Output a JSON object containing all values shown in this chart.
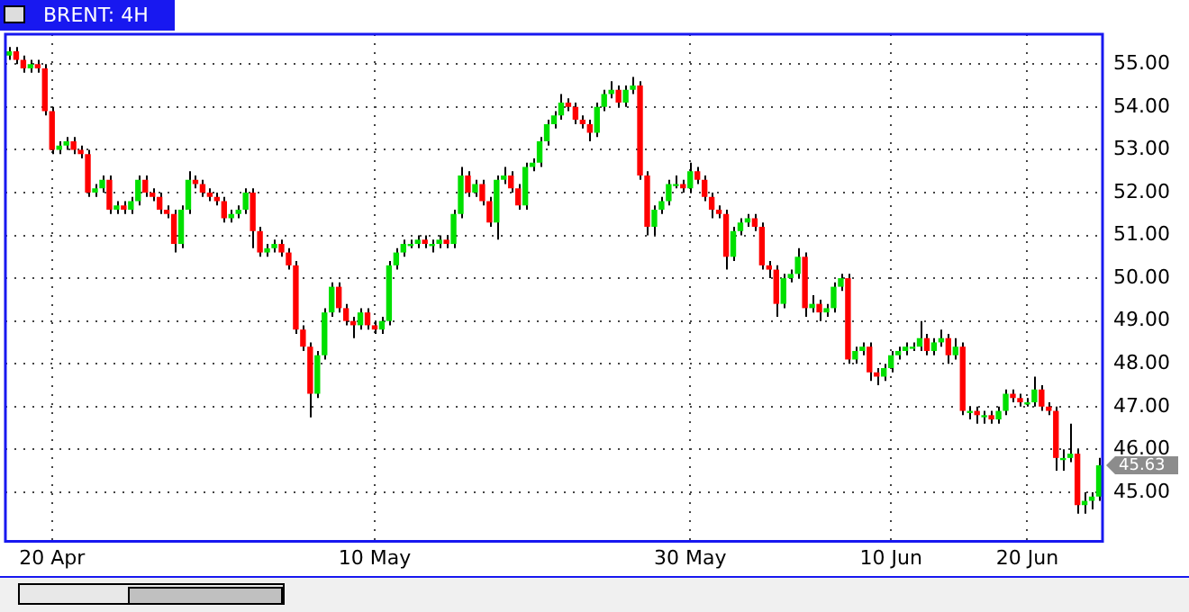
{
  "chart_data": {
    "type": "candlestick",
    "title": "BRENT: 4H",
    "categories": [
      null,
      null,
      null,
      null,
      null,
      null,
      "20 Apr",
      null,
      null,
      null,
      null,
      null,
      null,
      null,
      null,
      null,
      null,
      null,
      null,
      null,
      null,
      null,
      null,
      null,
      null,
      null,
      null,
      null,
      null,
      null,
      null,
      null,
      null,
      null,
      null,
      null,
      null,
      null,
      null,
      null,
      null,
      null,
      null,
      null,
      null,
      null,
      null,
      null,
      null,
      null,
      null,
      "10 May",
      null,
      null,
      null,
      null,
      null,
      null,
      null,
      null,
      null,
      null,
      null,
      null,
      null,
      null,
      null,
      null,
      null,
      null,
      null,
      null,
      null,
      null,
      null,
      null,
      null,
      null,
      null,
      null,
      null,
      null,
      null,
      null,
      null,
      null,
      null,
      null,
      null,
      null,
      null,
      null,
      null,
      null,
      null,
      "30 May",
      null,
      null,
      null,
      null,
      null,
      null,
      null,
      null,
      null,
      null,
      null,
      null,
      null,
      null,
      null,
      null,
      null,
      null,
      null,
      null,
      null,
      null,
      null,
      null,
      null,
      null,
      null,
      "10 Jun",
      null,
      null,
      null,
      null,
      null,
      null,
      null,
      null,
      null,
      null,
      null,
      null,
      null,
      null,
      null,
      null,
      null,
      null,
      "20 Jun",
      null,
      null,
      null,
      null,
      null,
      null,
      null,
      null,
      null,
      null
    ],
    "ohlc": [
      [
        55.2,
        55.4,
        55.1,
        55.3
      ],
      [
        55.3,
        55.4,
        55.0,
        55.1
      ],
      [
        55.1,
        55.2,
        54.8,
        54.9
      ],
      [
        54.9,
        55.1,
        54.8,
        55.0
      ],
      [
        55.0,
        55.1,
        54.8,
        54.9
      ],
      [
        54.9,
        55.0,
        53.8,
        53.9
      ],
      [
        53.9,
        54.0,
        52.9,
        53.0
      ],
      [
        53.0,
        53.2,
        52.9,
        53.1
      ],
      [
        53.1,
        53.3,
        53.0,
        53.2
      ],
      [
        53.2,
        53.3,
        52.9,
        53.0
      ],
      [
        53.0,
        53.1,
        52.8,
        52.9
      ],
      [
        52.9,
        53.0,
        51.9,
        52.0
      ],
      [
        52.0,
        52.2,
        51.9,
        52.1
      ],
      [
        52.1,
        52.4,
        52.0,
        52.3
      ],
      [
        52.3,
        52.4,
        51.5,
        51.6
      ],
      [
        51.6,
        51.8,
        51.5,
        51.7
      ],
      [
        51.7,
        51.8,
        51.5,
        51.6
      ],
      [
        51.6,
        51.9,
        51.5,
        51.8
      ],
      [
        51.8,
        52.4,
        51.7,
        52.3
      ],
      [
        52.3,
        52.4,
        51.9,
        52.0
      ],
      [
        52.0,
        52.1,
        51.8,
        51.9
      ],
      [
        51.9,
        52.0,
        51.5,
        51.6
      ],
      [
        51.6,
        51.7,
        51.4,
        51.5
      ],
      [
        51.5,
        51.6,
        50.6,
        50.8
      ],
      [
        50.8,
        51.7,
        50.7,
        51.6
      ],
      [
        51.6,
        52.5,
        51.5,
        52.3
      ],
      [
        52.3,
        52.4,
        52.1,
        52.2
      ],
      [
        52.2,
        52.3,
        51.9,
        52.0
      ],
      [
        52.0,
        52.1,
        51.8,
        51.9
      ],
      [
        51.9,
        52.0,
        51.7,
        51.8
      ],
      [
        51.8,
        51.9,
        51.3,
        51.4
      ],
      [
        51.4,
        51.6,
        51.3,
        51.5
      ],
      [
        51.5,
        51.7,
        51.4,
        51.6
      ],
      [
        51.6,
        52.1,
        51.5,
        52.0
      ],
      [
        52.0,
        52.1,
        50.7,
        51.1
      ],
      [
        51.1,
        51.2,
        50.5,
        50.6
      ],
      [
        50.6,
        50.8,
        50.5,
        50.7
      ],
      [
        50.7,
        50.9,
        50.6,
        50.8
      ],
      [
        50.8,
        50.9,
        50.5,
        50.6
      ],
      [
        50.6,
        50.7,
        50.2,
        50.3
      ],
      [
        50.3,
        50.4,
        48.7,
        48.8
      ],
      [
        48.8,
        48.9,
        48.3,
        48.4
      ],
      [
        48.4,
        48.5,
        46.75,
        47.3
      ],
      [
        47.3,
        48.3,
        47.2,
        48.2
      ],
      [
        48.2,
        49.3,
        48.1,
        49.2
      ],
      [
        49.2,
        49.9,
        49.1,
        49.8
      ],
      [
        49.8,
        49.9,
        49.2,
        49.3
      ],
      [
        49.3,
        49.4,
        48.9,
        49.0
      ],
      [
        49.0,
        49.1,
        48.6,
        48.9
      ],
      [
        48.9,
        49.3,
        48.8,
        49.2
      ],
      [
        49.2,
        49.3,
        48.8,
        48.9
      ],
      [
        48.9,
        49.0,
        48.7,
        48.8
      ],
      [
        48.8,
        49.1,
        48.7,
        49.0
      ],
      [
        49.0,
        50.4,
        48.9,
        50.3
      ],
      [
        50.3,
        50.7,
        50.2,
        50.6
      ],
      [
        50.6,
        50.9,
        50.5,
        50.8
      ],
      [
        50.75,
        50.9,
        50.7,
        50.8
      ],
      [
        50.8,
        51.0,
        50.7,
        50.9
      ],
      [
        50.9,
        51.0,
        50.7,
        50.8
      ],
      [
        50.75,
        50.9,
        50.6,
        50.8
      ],
      [
        50.8,
        51.0,
        50.7,
        50.9
      ],
      [
        50.9,
        51.0,
        50.7,
        50.8
      ],
      [
        50.8,
        51.6,
        50.7,
        51.5
      ],
      [
        51.5,
        52.6,
        51.4,
        52.4
      ],
      [
        52.4,
        52.5,
        51.9,
        52.0
      ],
      [
        52.0,
        52.3,
        51.9,
        52.2
      ],
      [
        52.2,
        52.3,
        51.7,
        51.8
      ],
      [
        51.8,
        51.9,
        51.2,
        51.3
      ],
      [
        51.3,
        52.4,
        50.9,
        52.3
      ],
      [
        52.3,
        52.6,
        52.2,
        52.4
      ],
      [
        52.4,
        52.5,
        52.0,
        52.1
      ],
      [
        52.1,
        52.2,
        51.6,
        51.7
      ],
      [
        51.7,
        52.7,
        51.6,
        52.6
      ],
      [
        52.6,
        52.8,
        52.5,
        52.7
      ],
      [
        52.7,
        53.3,
        52.6,
        53.2
      ],
      [
        53.2,
        53.7,
        53.1,
        53.6
      ],
      [
        53.6,
        53.9,
        53.5,
        53.8
      ],
      [
        53.8,
        54.3,
        53.7,
        54.1
      ],
      [
        54.1,
        54.2,
        53.9,
        54.0
      ],
      [
        54.0,
        54.1,
        53.6,
        53.7
      ],
      [
        53.7,
        53.8,
        53.5,
        53.6
      ],
      [
        53.6,
        53.7,
        53.2,
        53.4
      ],
      [
        53.4,
        54.1,
        53.3,
        54.0
      ],
      [
        54.0,
        54.4,
        53.9,
        54.3
      ],
      [
        54.3,
        54.6,
        54.2,
        54.4
      ],
      [
        54.4,
        54.5,
        54.0,
        54.1
      ],
      [
        54.1,
        54.5,
        54.0,
        54.4
      ],
      [
        54.4,
        54.7,
        54.3,
        54.5
      ],
      [
        54.5,
        54.6,
        52.3,
        52.4
      ],
      [
        52.4,
        52.5,
        51.0,
        51.2
      ],
      [
        51.2,
        51.7,
        51.0,
        51.6
      ],
      [
        51.6,
        51.9,
        51.5,
        51.8
      ],
      [
        51.8,
        52.3,
        51.7,
        52.2
      ],
      [
        52.15,
        52.4,
        52.1,
        52.2
      ],
      [
        52.2,
        52.3,
        52.0,
        52.1
      ],
      [
        52.1,
        52.7,
        52.0,
        52.5
      ],
      [
        52.5,
        52.6,
        52.2,
        52.3
      ],
      [
        52.3,
        52.4,
        51.8,
        51.9
      ],
      [
        51.9,
        52.0,
        51.4,
        51.6
      ],
      [
        51.6,
        51.7,
        51.4,
        51.5
      ],
      [
        51.5,
        51.6,
        50.2,
        50.5
      ],
      [
        50.5,
        51.2,
        50.4,
        51.1
      ],
      [
        51.1,
        51.4,
        51.0,
        51.3
      ],
      [
        51.3,
        51.5,
        51.2,
        51.4
      ],
      [
        51.4,
        51.5,
        51.1,
        51.2
      ],
      [
        51.2,
        51.3,
        50.2,
        50.3
      ],
      [
        50.3,
        50.4,
        50.0,
        50.2
      ],
      [
        50.2,
        50.3,
        49.1,
        49.4
      ],
      [
        49.4,
        50.1,
        49.3,
        50.0
      ],
      [
        50.0,
        50.2,
        49.9,
        50.1
      ],
      [
        50.1,
        50.7,
        50.0,
        50.5
      ],
      [
        50.5,
        50.6,
        49.1,
        49.3
      ],
      [
        49.3,
        49.6,
        49.2,
        49.4
      ],
      [
        49.4,
        49.5,
        49.0,
        49.2
      ],
      [
        49.2,
        49.4,
        49.1,
        49.3
      ],
      [
        49.3,
        49.9,
        49.2,
        49.8
      ],
      [
        49.8,
        50.1,
        49.7,
        50.0
      ],
      [
        50.0,
        50.1,
        48.0,
        48.1
      ],
      [
        48.1,
        48.4,
        48.0,
        48.3
      ],
      [
        48.3,
        48.5,
        48.2,
        48.4
      ],
      [
        48.4,
        48.5,
        47.6,
        47.8
      ],
      [
        47.8,
        47.9,
        47.5,
        47.7
      ],
      [
        47.7,
        48.0,
        47.6,
        47.9
      ],
      [
        47.9,
        48.3,
        47.8,
        48.2
      ],
      [
        48.2,
        48.4,
        48.1,
        48.3
      ],
      [
        48.3,
        48.5,
        48.2,
        48.4
      ],
      [
        48.35,
        48.5,
        48.3,
        48.4
      ],
      [
        48.4,
        49.0,
        48.3,
        48.6
      ],
      [
        48.6,
        48.7,
        48.2,
        48.3
      ],
      [
        48.3,
        48.6,
        48.2,
        48.5
      ],
      [
        48.5,
        48.8,
        48.4,
        48.6
      ],
      [
        48.6,
        48.7,
        48.0,
        48.2
      ],
      [
        48.2,
        48.6,
        48.1,
        48.4
      ],
      [
        48.4,
        48.5,
        46.8,
        46.9
      ],
      [
        46.85,
        47.0,
        46.7,
        46.9
      ],
      [
        46.9,
        47.0,
        46.6,
        46.8
      ],
      [
        46.75,
        46.9,
        46.6,
        46.8
      ],
      [
        46.8,
        46.9,
        46.6,
        46.7
      ],
      [
        46.7,
        47.0,
        46.6,
        46.9
      ],
      [
        46.9,
        47.4,
        46.8,
        47.3
      ],
      [
        47.3,
        47.4,
        47.1,
        47.2
      ],
      [
        47.2,
        47.3,
        47.0,
        47.1
      ],
      [
        47.05,
        47.2,
        47.0,
        47.1
      ],
      [
        47.1,
        47.7,
        47.0,
        47.4
      ],
      [
        47.4,
        47.5,
        46.9,
        47.0
      ],
      [
        47.0,
        47.1,
        46.8,
        46.9
      ],
      [
        46.9,
        47.0,
        45.5,
        45.8
      ],
      [
        45.75,
        46.0,
        45.5,
        45.8
      ],
      [
        45.8,
        46.6,
        45.7,
        45.9
      ],
      [
        45.9,
        46.0,
        44.5,
        44.7
      ],
      [
        44.7,
        45.0,
        44.5,
        44.8
      ],
      [
        44.8,
        45.0,
        44.6,
        44.9
      ],
      [
        44.9,
        45.8,
        44.8,
        45.63
      ]
    ],
    "colors": [
      "#00e000",
      "#ff0000",
      "#ff0000",
      "#00e000",
      "#ff0000",
      "#ff0000",
      "#ff0000",
      "#00e000",
      "#00e000",
      "#ff0000",
      "#ff0000",
      "#ff0000",
      "#00e000",
      "#00e000",
      "#ff0000",
      "#00e000",
      "#ff0000",
      "#00e000",
      "#00e000",
      "#ff0000",
      "#ff0000",
      "#ff0000",
      "#ff0000",
      "#ff0000",
      "#00e000",
      "#00e000",
      "#ff0000",
      "#ff0000",
      "#ff0000",
      "#ff0000",
      "#ff0000",
      "#00e000",
      "#00e000",
      "#00e000",
      "#ff0000",
      "#ff0000",
      "#00e000",
      "#00e000",
      "#ff0000",
      "#ff0000",
      "#ff0000",
      "#ff0000",
      "#ff0000",
      "#00e000",
      "#00e000",
      "#00e000",
      "#ff0000",
      "#ff0000",
      "#ff0000",
      "#00e000",
      "#ff0000",
      "#ff0000",
      "#00e000",
      "#00e000",
      "#00e000",
      "#00e000",
      "#00e000",
      "#00e000",
      "#ff0000",
      "#00e000",
      "#00e000",
      "#ff0000",
      "#00e000",
      "#00e000",
      "#ff0000",
      "#00e000",
      "#ff0000",
      "#ff0000",
      "#00e000",
      "#00e000",
      "#ff0000",
      "#ff0000",
      "#00e000",
      "#00e000",
      "#00e000",
      "#00e000",
      "#00e000",
      "#00e000",
      "#ff0000",
      "#ff0000",
      "#ff0000",
      "#ff0000",
      "#00e000",
      "#00e000",
      "#00e000",
      "#ff0000",
      "#00e000",
      "#00e000",
      "#ff0000",
      "#ff0000",
      "#00e000",
      "#00e000",
      "#00e000",
      "#00e000",
      "#ff0000",
      "#00e000",
      "#ff0000",
      "#ff0000",
      "#ff0000",
      "#ff0000",
      "#ff0000",
      "#00e000",
      "#00e000",
      "#00e000",
      "#ff0000",
      "#ff0000",
      "#ff0000",
      "#ff0000",
      "#00e000",
      "#00e000",
      "#00e000",
      "#ff0000",
      "#00e000",
      "#ff0000",
      "#00e000",
      "#00e000",
      "#00e000",
      "#ff0000",
      "#00e000",
      "#00e000",
      "#ff0000",
      "#ff0000",
      "#00e000",
      "#00e000",
      "#00e000",
      "#00e000",
      "#00e000",
      "#00e000",
      "#ff0000",
      "#00e000",
      "#00e000",
      "#ff0000",
      "#00e000",
      "#ff0000",
      "#00e000",
      "#ff0000",
      "#00e000",
      "#ff0000",
      "#00e000",
      "#00e000",
      "#ff0000",
      "#ff0000",
      "#00e000",
      "#00e000",
      "#ff0000",
      "#ff0000",
      "#ff0000",
      "#00e000",
      "#00e000",
      "#ff0000",
      "#00e000",
      "#00e000",
      "#00e000"
    ],
    "ylim": [
      43.85,
      55.7
    ],
    "yticks": [
      {
        "value": 45,
        "label": "45.00"
      },
      {
        "value": 46,
        "label": "46.00"
      },
      {
        "value": 47,
        "label": "47.00"
      },
      {
        "value": 48,
        "label": "48.00"
      },
      {
        "value": 49,
        "label": "49.00"
      },
      {
        "value": 50,
        "label": "50.00"
      },
      {
        "value": 51,
        "label": "51.00"
      },
      {
        "value": 52,
        "label": "52.00"
      },
      {
        "value": 53,
        "label": "53.00"
      },
      {
        "value": 54,
        "label": "54.00"
      },
      {
        "value": 55,
        "label": "55.00"
      }
    ],
    "grid": true,
    "annotations": [
      "45.63"
    ]
  }
}
